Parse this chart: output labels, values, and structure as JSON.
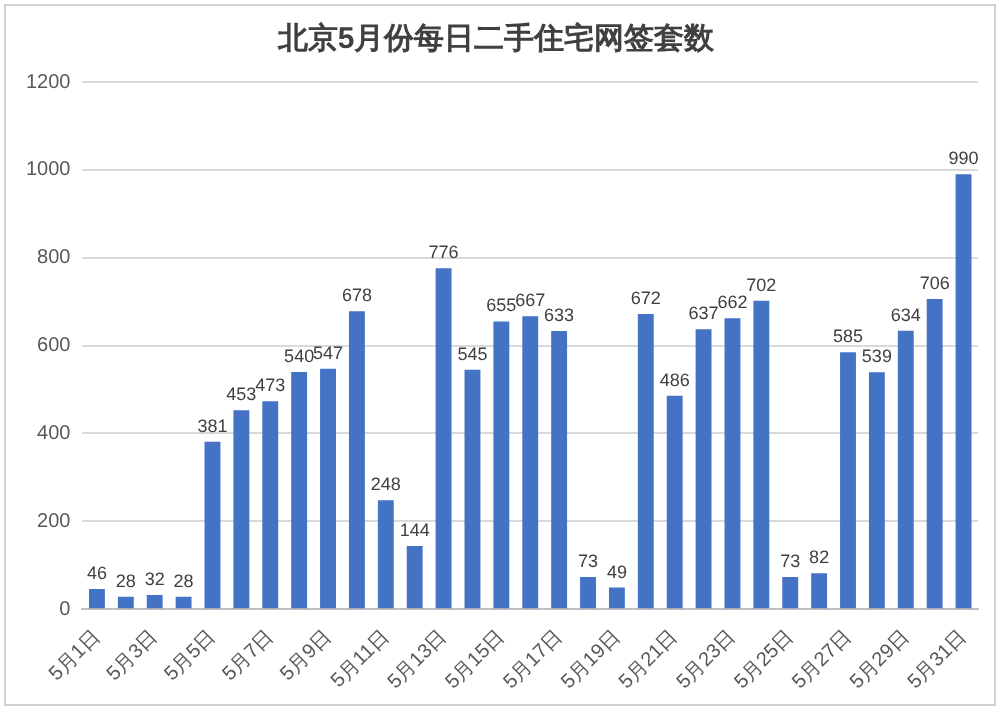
{
  "chart_data": {
    "type": "bar",
    "title": "北京5月份每日二手住宅网签套数",
    "categories": [
      "5月1日",
      null,
      "5月3日",
      null,
      "5月5日",
      null,
      "5月7日",
      null,
      "5月9日",
      null,
      "5月11日",
      null,
      "5月13日",
      null,
      "5月15日",
      null,
      "5月17日",
      null,
      "5月19日",
      null,
      "5月21日",
      null,
      "5月23日",
      null,
      "5月25日",
      null,
      "5月27日",
      null,
      "5月29日",
      null,
      "5月31日"
    ],
    "values": [
      46,
      28,
      32,
      28,
      381,
      453,
      473,
      540,
      547,
      678,
      248,
      144,
      776,
      545,
      655,
      667,
      633,
      73,
      49,
      672,
      486,
      637,
      662,
      702,
      73,
      82,
      585,
      539,
      634,
      706,
      990
    ],
    "color": "#4472c4",
    "ylim": [
      0,
      1200
    ],
    "yticks": [
      0,
      200,
      400,
      600,
      800,
      1000,
      1200
    ],
    "grid": "y",
    "data_labels": true
  }
}
